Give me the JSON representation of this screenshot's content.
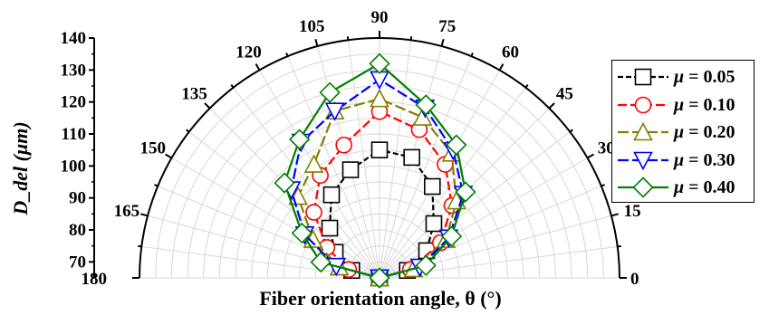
{
  "chart_data": {
    "type": "polar-scatter-line",
    "xlabel": "Fiber orientation angle, θ (°)",
    "ylabel": "D_del (μm)",
    "theta_ticks": [
      0,
      15,
      30,
      45,
      60,
      75,
      90,
      105,
      120,
      135,
      150,
      165,
      180
    ],
    "r_ticks": [
      70,
      80,
      90,
      100,
      110,
      120,
      130,
      140
    ],
    "rlim": [
      65,
      140
    ],
    "grid": true,
    "legend_position": "right",
    "series": [
      {
        "name": "μ = 0.05",
        "color": "#000000",
        "marker": "square",
        "dash": "6,3",
        "points": [
          [
            0,
            65
          ],
          [
            15,
            74
          ],
          [
            30,
            82
          ],
          [
            45,
            89
          ],
          [
            60,
            98
          ],
          [
            75,
            104
          ],
          [
            90,
            105
          ],
          [
            105,
            100
          ],
          [
            120,
            95
          ],
          [
            135,
            87
          ],
          [
            150,
            81
          ],
          [
            165,
            74
          ],
          [
            180,
            65
          ]
        ]
      },
      {
        "name": "μ = 0.10",
        "color": "#ff0000",
        "marker": "circle",
        "dash": "10,4",
        "points": [
          [
            0,
            65
          ],
          [
            15,
            75
          ],
          [
            30,
            87
          ],
          [
            45,
            97
          ],
          [
            60,
            106
          ],
          [
            75,
            113
          ],
          [
            90,
            117
          ],
          [
            105,
            108
          ],
          [
            120,
            102
          ],
          [
            135,
            94
          ],
          [
            150,
            84
          ],
          [
            165,
            75
          ],
          [
            180,
            65
          ]
        ]
      },
      {
        "name": "μ = 0.20",
        "color": "#808000",
        "marker": "triangle-up",
        "dash": "12,4",
        "points": [
          [
            0,
            65
          ],
          [
            15,
            76
          ],
          [
            30,
            89
          ],
          [
            45,
            99
          ],
          [
            60,
            110
          ],
          [
            75,
            117
          ],
          [
            90,
            121
          ],
          [
            105,
            119
          ],
          [
            120,
            106
          ],
          [
            135,
            101
          ],
          [
            150,
            89
          ],
          [
            165,
            78
          ],
          [
            180,
            65
          ]
        ]
      },
      {
        "name": "μ = 0.30",
        "color": "#0000ff",
        "marker": "triangle-down",
        "dash": "12,4",
        "points": [
          [
            0,
            65
          ],
          [
            15,
            78
          ],
          [
            30,
            90
          ],
          [
            45,
            102
          ],
          [
            60,
            111
          ],
          [
            75,
            120
          ],
          [
            90,
            127
          ],
          [
            105,
            119
          ],
          [
            120,
            114
          ],
          [
            135,
            104
          ],
          [
            150,
            92
          ],
          [
            165,
            79
          ],
          [
            180,
            65
          ]
        ]
      },
      {
        "name": "μ = 0.40",
        "color": "#008000",
        "marker": "diamond",
        "dash": "",
        "points": [
          [
            0,
            65
          ],
          [
            15,
            80
          ],
          [
            30,
            91
          ],
          [
            45,
            103
          ],
          [
            60,
            113
          ],
          [
            75,
            121
          ],
          [
            90,
            132
          ],
          [
            105,
            125
          ],
          [
            120,
            115
          ],
          [
            135,
            107
          ],
          [
            150,
            93
          ],
          [
            165,
            84
          ],
          [
            180,
            65
          ]
        ]
      }
    ]
  }
}
